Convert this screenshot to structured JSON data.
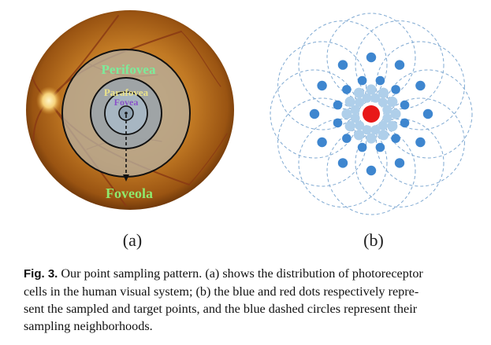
{
  "panel_a": {
    "label": "(a)",
    "regions": {
      "perifovea": "Perifovea",
      "parafovea": "Parafovea",
      "fovea": "Fovea",
      "foveola": "Foveola"
    }
  },
  "panel_b": {
    "label": "(b)"
  },
  "caption": {
    "figure_label": "Fig. 3.",
    "lines": [
      "Our point sampling pattern. (a) shows the distribution of photoreceptor",
      "cells in the human visual system; (b) the blue and red dots respectively repre-",
      "sent the sampled and target points, and the blue dashed circles represent their",
      "sampling neighborhoods."
    ]
  },
  "colors": {
    "perifovea_text": "#7CEB9A",
    "parafovea_text": "#EBE38A",
    "fovea_text": "#8A52C8",
    "foveola_text": "#8EEA6E",
    "sample_dot_dark": "#3E86CF",
    "sample_dot_light": "#AFCFEA",
    "target_dot": "#E81818",
    "neighborhood_circle": "#7FA9D2"
  },
  "icons": {
    "retina": "retina-fundus-image",
    "arrow": "dashed-down-arrow"
  }
}
